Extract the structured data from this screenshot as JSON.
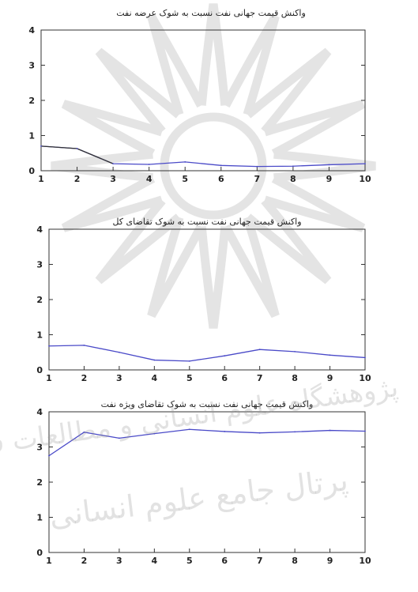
{
  "colors": {
    "line": "#4a4ac8",
    "early_segment": "#333333",
    "axis": "#333333",
    "watermark": "#bdbdbd"
  },
  "watermark": {
    "line1": "پژوهشگاه علوم انسانی و مطالعات فرهنگی",
    "line2": "پرتال جامع علوم انسانی"
  },
  "chart_data": [
    {
      "type": "line",
      "title": "واکنش قیمت جهانی نفت نسبت به شوک عرضه نفت",
      "x": [
        1,
        2,
        3,
        4,
        5,
        6,
        7,
        8,
        9,
        10
      ],
      "series": [
        {
          "values": [
            0.7,
            0.63,
            0.2,
            0.18,
            0.25,
            0.15,
            0.12,
            0.13,
            0.17,
            0.2
          ]
        }
      ],
      "xlim": [
        1,
        10
      ],
      "ylim": [
        0,
        4
      ],
      "yticks": [
        0,
        1,
        2,
        3,
        4
      ],
      "xticks": [
        1,
        2,
        3,
        4,
        5,
        6,
        7,
        8,
        9,
        10
      ],
      "grid": false
    },
    {
      "type": "line",
      "title": "واکنش قیمت جهانی نفت نسبت به شوک تقاضای کل",
      "x": [
        1,
        2,
        3,
        4,
        5,
        6,
        7,
        8,
        9,
        10
      ],
      "series": [
        {
          "values": [
            0.68,
            0.7,
            0.5,
            0.28,
            0.25,
            0.4,
            0.58,
            0.52,
            0.42,
            0.35
          ]
        }
      ],
      "xlim": [
        1,
        10
      ],
      "ylim": [
        0,
        4
      ],
      "yticks": [
        0,
        1,
        2,
        3,
        4
      ],
      "xticks": [
        1,
        2,
        3,
        4,
        5,
        6,
        7,
        8,
        9,
        10
      ],
      "grid": false
    },
    {
      "type": "line",
      "title": "واکنش قیمت جهانی نفت نسبت به شوک تقاضای ویژه نفت",
      "x": [
        1,
        2,
        3,
        4,
        5,
        6,
        7,
        8,
        9,
        10
      ],
      "series": [
        {
          "values": [
            2.75,
            3.42,
            3.25,
            3.38,
            3.5,
            3.44,
            3.4,
            3.43,
            3.47,
            3.45
          ]
        }
      ],
      "xlim": [
        1,
        10
      ],
      "ylim": [
        0,
        4
      ],
      "yticks": [
        0,
        1,
        2,
        3,
        4
      ],
      "xticks": [
        1,
        2,
        3,
        4,
        5,
        6,
        7,
        8,
        9,
        10
      ],
      "grid": false
    }
  ]
}
